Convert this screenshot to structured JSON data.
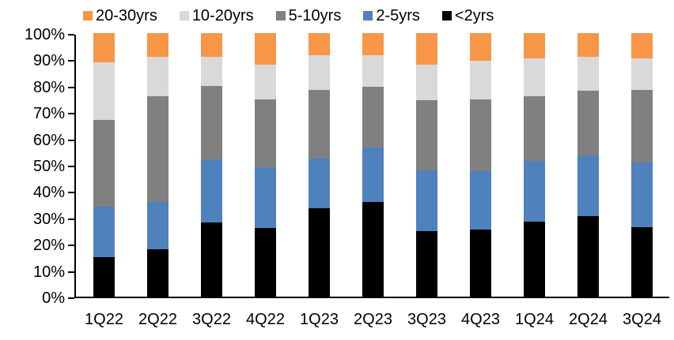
{
  "chart_data": {
    "type": "bar",
    "variant": "stacked-100-percent",
    "title": "",
    "xlabel": "",
    "ylabel": "",
    "ylim": [
      0,
      100
    ],
    "grid": false,
    "legend_position": "top",
    "legend_order": [
      "20-30yrs",
      "10-20yrs",
      "5-10yrs",
      "2-5yrs",
      "<2yrs"
    ],
    "y_tick_labels": [
      "0%",
      "10%",
      "20%",
      "30%",
      "40%",
      "50%",
      "60%",
      "70%",
      "80%",
      "90%",
      "100%"
    ],
    "categories": [
      "1Q22",
      "2Q22",
      "3Q22",
      "4Q22",
      "1Q23",
      "2Q23",
      "3Q23",
      "4Q23",
      "1Q24",
      "2Q24",
      "3Q24"
    ],
    "series": [
      {
        "name": "<2yrs",
        "color": "#000000",
        "values": [
          15,
          18,
          28,
          26,
          33.5,
          36,
          25,
          25.5,
          28.5,
          30.5,
          26.5
        ]
      },
      {
        "name": "2-5yrs",
        "color": "#4F81BD",
        "values": [
          19,
          18,
          24,
          23,
          19,
          20.5,
          23,
          22,
          23,
          23,
          24.5
        ]
      },
      {
        "name": "5-10yrs",
        "color": "#808080",
        "values": [
          33,
          40,
          28,
          26,
          26,
          23,
          26.5,
          27.5,
          24.5,
          24.5,
          27.5
        ]
      },
      {
        "name": "10-20yrs",
        "color": "#D9D9D9",
        "values": [
          22,
          15,
          11,
          13,
          13,
          12,
          13.5,
          14.5,
          14.5,
          13,
          12
        ]
      },
      {
        "name": "20-30yrs",
        "color": "#F79646",
        "values": [
          11,
          9,
          9,
          12,
          8.5,
          8.5,
          12,
          10.5,
          9.5,
          9,
          9.5
        ]
      }
    ],
    "axis_color": "#000000"
  }
}
